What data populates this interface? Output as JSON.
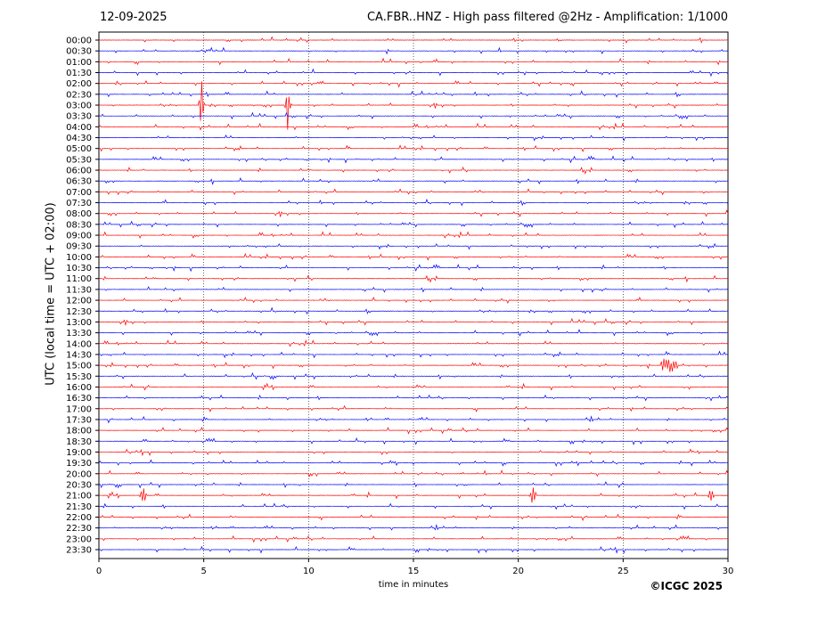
{
  "header": {
    "date": "12-09-2025",
    "title": "CA.FBR..HNZ - High pass filtered @2Hz - Amplification: 1/1000"
  },
  "footer": {
    "copyright": "©ICGC 2025"
  },
  "chart_data": {
    "type": "line",
    "chart_kind": "helicorder",
    "xlabel": "time in minutes",
    "ylabel": "UTC (local time = UTC + 02:00)",
    "xlim": [
      0,
      30
    ],
    "x_ticks": [
      0,
      5,
      10,
      15,
      20,
      25,
      30
    ],
    "x_grid": "dotted vertical lines at every 5 minutes",
    "row_colors": [
      "#ff0000",
      "#0000ff"
    ],
    "rows": [
      "00:00",
      "00:30",
      "01:00",
      "01:30",
      "02:00",
      "02:30",
      "03:00",
      "03:30",
      "04:00",
      "04:30",
      "05:00",
      "05:30",
      "06:00",
      "06:30",
      "07:00",
      "07:30",
      "08:00",
      "08:30",
      "09:00",
      "09:30",
      "10:00",
      "10:30",
      "11:00",
      "11:30",
      "12:00",
      "12:30",
      "13:00",
      "13:30",
      "14:00",
      "14:30",
      "15:00",
      "15:30",
      "16:00",
      "16:30",
      "17:00",
      "17:30",
      "18:00",
      "18:30",
      "19:00",
      "19:30",
      "20:00",
      "20:30",
      "21:00",
      "21:30",
      "22:00",
      "22:30",
      "23:00",
      "23:30"
    ],
    "notable_events": [
      {
        "row": "03:00",
        "minute": 4.9,
        "description": "large spike"
      },
      {
        "row": "03:00",
        "minute": 9.0,
        "description": "large spike"
      },
      {
        "row": "21:00",
        "minute": 2.1,
        "description": "spike"
      },
      {
        "row": "21:00",
        "minute": 20.7,
        "description": "spike"
      },
      {
        "row": "21:00",
        "minute": 29.2,
        "description": "spike"
      },
      {
        "row": "15:00",
        "minute": 27.2,
        "description": "burst"
      }
    ]
  }
}
